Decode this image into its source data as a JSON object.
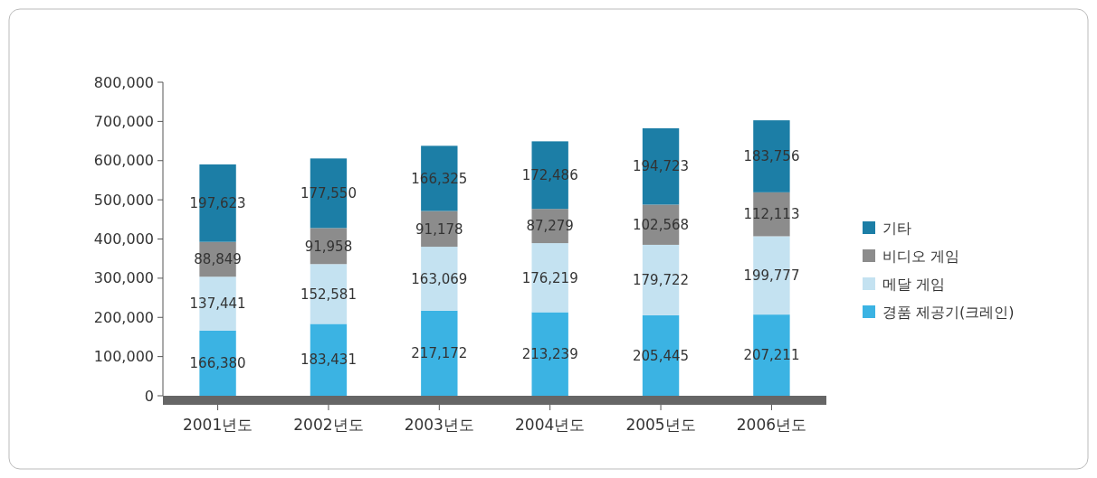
{
  "chart_data": {
    "type": "bar",
    "stacked": true,
    "categories": [
      "2001년도",
      "2002년도",
      "2003년도",
      "2004년도",
      "2005년도",
      "2006년도"
    ],
    "series": [
      {
        "name": "경품 제공기(크레인)",
        "color": "#3bb3e3",
        "values": [
          166380,
          183431,
          217172,
          213239,
          205445,
          207211
        ],
        "value_labels": [
          "166,380",
          "183,431",
          "217,172",
          "213,239",
          "205,445",
          "207,211"
        ]
      },
      {
        "name": "메달 게임",
        "color": "#c4e2f1",
        "values": [
          137441,
          152581,
          163069,
          176219,
          179722,
          199777
        ],
        "value_labels": [
          "137,441",
          "152,581",
          "163,069",
          "176,219",
          "179,722",
          "199,777"
        ]
      },
      {
        "name": "비디오 게임",
        "color": "#8c8c8c",
        "values": [
          88849,
          91958,
          91178,
          87279,
          102568,
          112113
        ],
        "value_labels": [
          "88,849",
          "91,958",
          "91,178",
          "87,279",
          "102,568",
          "112,113"
        ]
      },
      {
        "name": "기타",
        "color": "#1c7ea6",
        "values": [
          197623,
          177550,
          166325,
          172486,
          194723,
          183756
        ],
        "value_labels": [
          "197,623",
          "177,550",
          "166,325",
          "172,486",
          "194,723",
          "183,756"
        ]
      }
    ],
    "ylim": [
      0,
      800000
    ],
    "yticks": [
      0,
      {
        "value": 100000,
        "label": "100,000"
      },
      {
        "value": 200000,
        "label": "200,000"
      },
      {
        "value": 300000,
        "label": "300,000"
      },
      {
        "value": 400000,
        "label": "400,000"
      },
      {
        "value": 500000,
        "label": "500,000"
      },
      {
        "value": 600000,
        "label": "600,000"
      },
      {
        "value": 700000,
        "label": "700,000"
      },
      {
        "value": 800000,
        "label": "800,000"
      }
    ],
    "legend": "right",
    "grid": false
  }
}
